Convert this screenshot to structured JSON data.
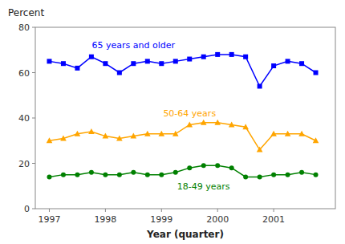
{
  "chart_data": {
    "type": "line",
    "x": [
      1997.0,
      1997.25,
      1997.5,
      1997.75,
      1998.0,
      1998.25,
      1998.5,
      1998.75,
      1999.0,
      1999.25,
      1999.5,
      1999.75,
      2000.0,
      2000.25,
      2000.5,
      2000.75,
      2001.0,
      2001.25,
      2001.5,
      2001.75
    ],
    "series": [
      {
        "name": "65 years and older",
        "color": "#0000ff",
        "marker": "square",
        "values": [
          65,
          64,
          62,
          67,
          64,
          60,
          64,
          65,
          64,
          65,
          66,
          67,
          68,
          68,
          67,
          54,
          63,
          65,
          64,
          60
        ]
      },
      {
        "name": "50-64 years",
        "color": "#ffa500",
        "marker": "triangle",
        "values": [
          30,
          31,
          33,
          34,
          32,
          31,
          32,
          33,
          33,
          33,
          37,
          38,
          38,
          37,
          36,
          26,
          33,
          33,
          33,
          30
        ]
      },
      {
        "name": "18-49 years",
        "color": "#008000",
        "marker": "circle",
        "values": [
          14,
          15,
          15,
          16,
          15,
          15,
          16,
          15,
          15,
          16,
          18,
          19,
          19,
          18,
          14,
          14,
          15,
          15,
          16,
          15
        ]
      }
    ],
    "xlabel": "Year (quarter)",
    "ylabel": "Percent",
    "xlim": [
      1996.75,
      2002.1
    ],
    "xticks": [
      1997,
      1998,
      1999,
      2000,
      2001
    ],
    "ylim": [
      0,
      80
    ],
    "yticks": [
      0,
      20,
      40,
      60,
      80
    ],
    "grid": false
  }
}
